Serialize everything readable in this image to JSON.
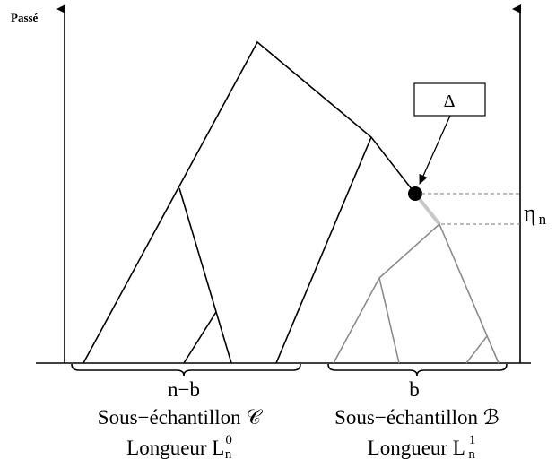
{
  "axis_label": "Passé",
  "delta_label": "Δ",
  "eta_label": {
    "symbol": "η",
    "subscript": "n"
  },
  "left_sample": {
    "size": "n−b",
    "name": "Sous−échantillon 𝒞",
    "length": {
      "text": "Longueur L",
      "subscript": "n",
      "superscript": "0"
    }
  },
  "right_sample": {
    "size": "b",
    "name": "Sous−échantillon ℬ",
    "length": {
      "text": "Longueur L",
      "subscript": "n",
      "superscript": "1"
    }
  }
}
